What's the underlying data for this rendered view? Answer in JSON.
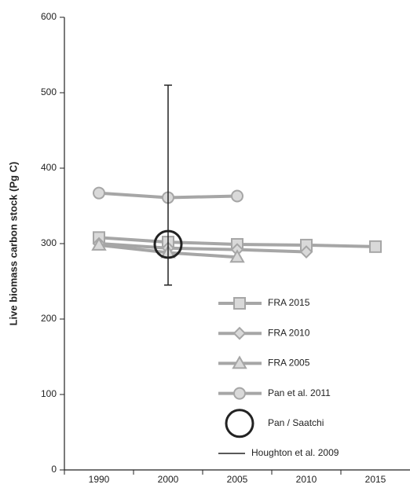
{
  "chart_data": {
    "type": "line",
    "y_label": "Live biomass carbon stock (Pg C)",
    "categories": [
      "1990",
      "2000",
      "2005",
      "2010",
      "2015"
    ],
    "ylim": [
      0,
      600
    ],
    "yticks": [
      0,
      100,
      200,
      300,
      400,
      500,
      600
    ],
    "series": [
      {
        "name": "FRA 2015",
        "color": "#a6a6a6",
        "fill": "#d9d9d9",
        "marker": "square",
        "values": [
          308,
          302,
          299,
          298,
          296
        ]
      },
      {
        "name": "FRA 2010",
        "color": "#a6a6a6",
        "fill": "#d9d9d9",
        "marker": "diamond",
        "values": [
          300,
          294,
          292,
          289,
          null
        ]
      },
      {
        "name": "FRA 2005",
        "color": "#a6a6a6",
        "fill": "#d9d9d9",
        "marker": "triangle",
        "values": [
          298,
          288,
          282,
          null,
          null
        ]
      },
      {
        "name": "Pan et al. 2011",
        "color": "#a6a6a6",
        "fill": "#d9d9d9",
        "marker": "circle",
        "values": [
          367,
          361,
          363,
          null,
          null
        ]
      },
      {
        "name": "Pan / Saatchi",
        "color": "#222222",
        "marker": "ring",
        "values": [
          null,
          299,
          null,
          null,
          null
        ]
      },
      {
        "name": "Houghton et al. 2009",
        "color": "#222222",
        "low": [
          null,
          245,
          null,
          null,
          null
        ],
        "high": [
          null,
          510,
          null,
          null,
          null
        ]
      }
    ]
  }
}
